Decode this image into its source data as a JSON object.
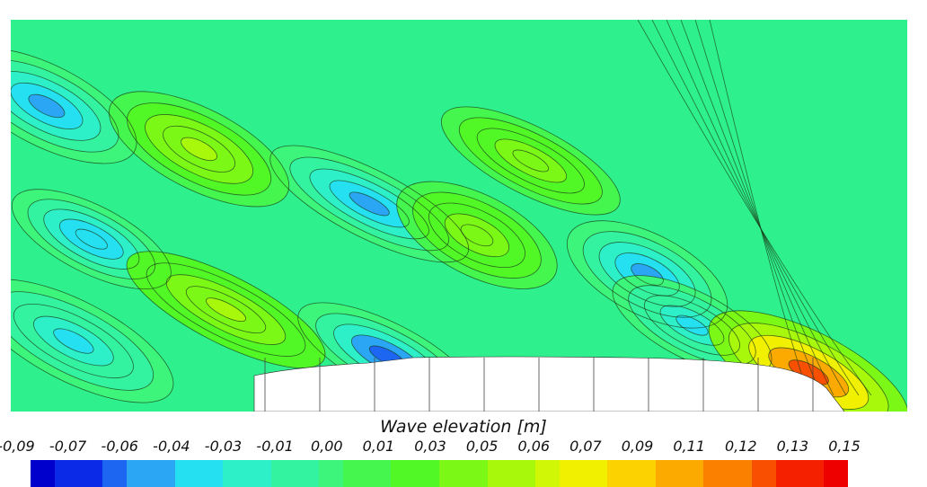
{
  "chart_data": {
    "type": "heatmap",
    "title": "Wave elevation [m]",
    "legend_ticks": [
      "-0,09",
      "-0,07",
      "-0,06",
      "-0,04",
      "-0,03",
      "-0,01",
      "0,00",
      "0,01",
      "0,03",
      "0,05",
      "0,06",
      "0,07",
      "0,09",
      "0,11",
      "0,12",
      "0,13",
      "0,15"
    ],
    "value_range": [
      -0.09,
      0.15
    ],
    "colorbar_levels": 34,
    "colormap": [
      "#0000cc",
      "#0a2ae8",
      "#1c66f2",
      "#2aa6f4",
      "#24e0f0",
      "#2ef0c8",
      "#34f3a0",
      "#3cf57a",
      "#44f64e",
      "#52f826",
      "#7cf816",
      "#a8f80c",
      "#d0f806",
      "#f0f000",
      "#fcd200",
      "#fcaa00",
      "#fc8000",
      "#f85000",
      "#f42000",
      "#ee0000"
    ],
    "regions": [
      {
        "kind": "trough",
        "value": -0.045,
        "near": [
          0.09,
          0.56
        ]
      },
      {
        "kind": "trough",
        "value": -0.05,
        "near": [
          0.04,
          0.22
        ]
      },
      {
        "kind": "trough",
        "value": -0.05,
        "near": [
          0.4,
          0.47
        ]
      },
      {
        "kind": "trough",
        "value": -0.055,
        "near": [
          0.71,
          0.65
        ]
      },
      {
        "kind": "trough",
        "value": -0.06,
        "near": [
          0.42,
          0.86
        ]
      },
      {
        "kind": "trough",
        "value": -0.035,
        "near": [
          0.07,
          0.82
        ]
      },
      {
        "kind": "trough",
        "value": -0.035,
        "near": [
          0.76,
          0.78
        ]
      },
      {
        "kind": "crest",
        "value": 0.045,
        "near": [
          0.21,
          0.33
        ]
      },
      {
        "kind": "crest",
        "value": 0.05,
        "near": [
          0.24,
          0.74
        ]
      },
      {
        "kind": "crest",
        "value": 0.035,
        "near": [
          0.52,
          0.55
        ]
      },
      {
        "kind": "crest",
        "value": 0.04,
        "near": [
          0.58,
          0.36
        ]
      },
      {
        "kind": "crest",
        "value": 0.12,
        "near": [
          0.89,
          0.9
        ]
      }
    ],
    "background_value": 0.01,
    "hull": {
      "label": "",
      "station_lines": 11
    }
  }
}
